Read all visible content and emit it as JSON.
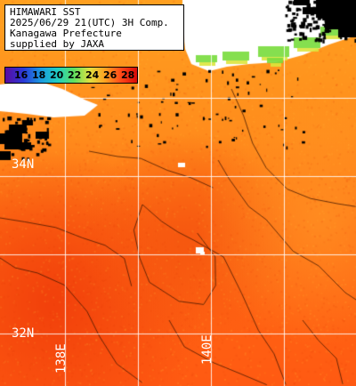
{
  "title": {
    "lines": [
      "HIMAWARI SST",
      "2025/06/29 21(UTC) 3H Comp.",
      "Kanagawa Prefecture",
      "supplied by JAXA"
    ]
  },
  "legend": {
    "labels": [
      "16",
      "18",
      "20",
      "22",
      "24",
      "26",
      "28"
    ],
    "colors": [
      "#5a0aa0",
      "#2a3ad8",
      "#1a9ae0",
      "#20d0c0",
      "#60e060",
      "#e0e040",
      "#ffa020",
      "#ff4818",
      "#d80808"
    ]
  },
  "grid_labels": {
    "lat_34": "34N",
    "lat_32": "32N",
    "lon_138": "138E",
    "lon_140": "140E"
  },
  "colors": {
    "land": "#ffffff",
    "cloud": "#000000",
    "grid": "#ffffff",
    "sea_warm": "#ff7a18",
    "sea_warmer": "#ff5010",
    "sea_cool": "#ffb020"
  }
}
